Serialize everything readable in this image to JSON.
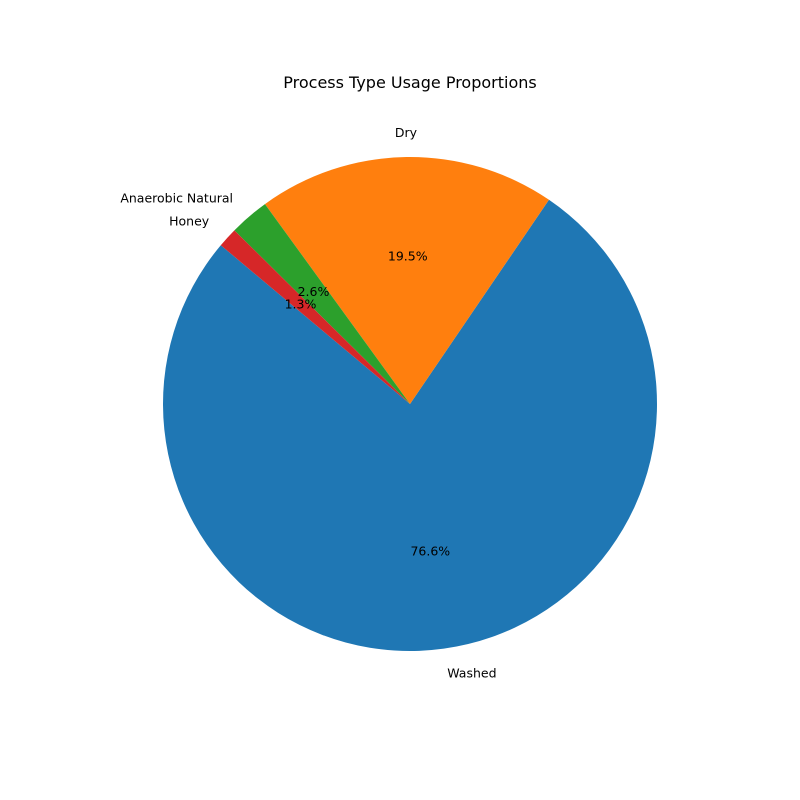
{
  "chart_data": {
    "type": "pie",
    "title": "Process Type Usage Proportions",
    "start_angle_deg": 140,
    "direction": "counterclockwise",
    "slices": [
      {
        "label": "Washed",
        "value": 76.6,
        "pct_label": "76.6%",
        "color": "#1f77b4"
      },
      {
        "label": "Dry",
        "value": 19.5,
        "pct_label": "19.5%",
        "color": "#ff7f0e"
      },
      {
        "label": "Anaerobic Natural",
        "value": 2.6,
        "pct_label": "2.6%",
        "color": "#2ca02c"
      },
      {
        "label": "Honey",
        "value": 1.3,
        "pct_label": "1.3%",
        "color": "#d62728"
      }
    ]
  }
}
